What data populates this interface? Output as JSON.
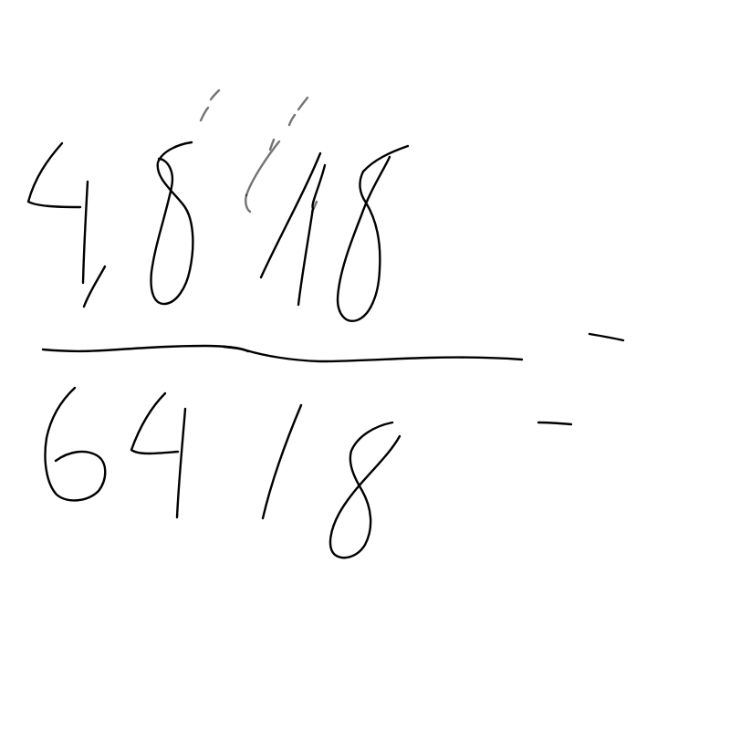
{
  "canvas": {
    "background": "#ffffff",
    "ink_color": "#000000"
  },
  "handwriting": {
    "numerator": "48/8",
    "denominator": "64/8"
  }
}
